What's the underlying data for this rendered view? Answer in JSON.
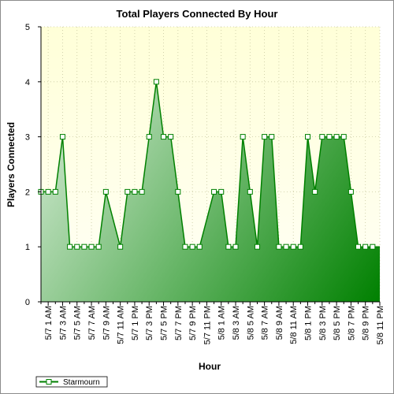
{
  "chart_data": {
    "type": "area",
    "title": "Total Players Connected By Hour",
    "xlabel": "Hour",
    "ylabel": "Players Connected",
    "ylim": [
      0,
      5
    ],
    "yticks": [
      0,
      1,
      2,
      3,
      4,
      5
    ],
    "grid": true,
    "legend_position": "bottom-left",
    "x_tick_labels": [
      "5/7 1 AM",
      "5/7 3 AM",
      "5/7 5 AM",
      "5/7 7 AM",
      "5/7 9 AM",
      "5/7 11 AM",
      "5/7 1 PM",
      "5/7 3 PM",
      "5/7 5 PM",
      "5/7 7 PM",
      "5/7 9 PM",
      "5/7 11 PM",
      "5/8 1 AM",
      "5/8 3 AM",
      "5/8 5 AM",
      "5/8 7 AM",
      "5/8 9 AM",
      "5/8 11 AM",
      "5/8 1 PM",
      "5/8 3 PM",
      "5/8 5 PM",
      "5/8 7 PM",
      "5/8 9 PM",
      "5/8 11 PM"
    ],
    "x": [
      "5/7 12 AM",
      "5/7 1 AM",
      "5/7 2 AM",
      "5/7 3 AM",
      "5/7 4 AM",
      "5/7 5 AM",
      "5/7 6 AM",
      "5/7 7 AM",
      "5/7 8 AM",
      "5/7 9 AM",
      "5/7 10 AM",
      "5/7 11 AM",
      "5/7 12 PM",
      "5/7 1 PM",
      "5/7 2 PM",
      "5/7 3 PM",
      "5/7 4 PM",
      "5/7 5 PM",
      "5/7 6 PM",
      "5/7 7 PM",
      "5/7 8 PM",
      "5/7 9 PM",
      "5/7 10 PM",
      "5/7 11 PM",
      "5/8 12 AM",
      "5/8 1 AM",
      "5/8 2 AM",
      "5/8 3 AM",
      "5/8 4 AM",
      "5/8 5 AM",
      "5/8 6 AM",
      "5/8 7 AM",
      "5/8 8 AM",
      "5/8 9 AM",
      "5/8 10 AM",
      "5/8 11 AM",
      "5/8 12 PM",
      "5/8 1 PM",
      "5/8 2 PM",
      "5/8 3 PM",
      "5/8 4 PM",
      "5/8 5 PM",
      "5/8 6 PM",
      "5/8 7 PM",
      "5/8 8 PM",
      "5/8 9 PM",
      "5/8 10 PM",
      "5/8 11 PM"
    ],
    "series": [
      {
        "name": "Starmourn",
        "color": "#008000",
        "values": [
          2,
          2,
          2,
          3,
          1,
          1,
          1,
          1,
          1,
          2,
          null,
          1,
          2,
          2,
          2,
          3,
          4,
          3,
          3,
          2,
          1,
          1,
          1,
          null,
          2,
          2,
          1,
          1,
          3,
          2,
          1,
          3,
          3,
          1,
          1,
          1,
          1,
          3,
          2,
          3,
          3,
          3,
          3,
          2,
          1,
          1,
          1,
          null
        ]
      }
    ]
  }
}
